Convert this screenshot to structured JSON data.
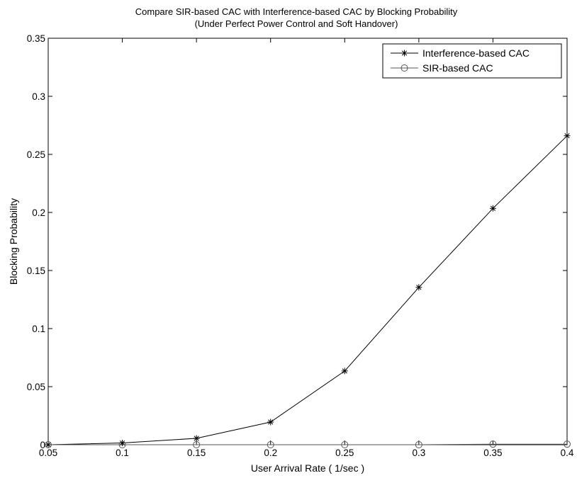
{
  "chart_data": {
    "type": "line",
    "title": "Compare SIR-based CAC with Interference-based CAC by Blocking Probability",
    "subtitle": "(Under Perfect Power Control and Soft Handover)",
    "xlabel": "User Arrival Rate ( 1/sec )",
    "ylabel": "Blocking Probability",
    "xlim": [
      0.05,
      0.4
    ],
    "ylim": [
      0,
      0.35
    ],
    "xticks": [
      "0.05",
      "0.1",
      "0.15",
      "0.2",
      "0.25",
      "0.3",
      "0.35",
      "0.4"
    ],
    "yticks": [
      "0",
      "0.05",
      "0.1",
      "0.15",
      "0.2",
      "0.25",
      "0.3",
      "0.35"
    ],
    "grid": false,
    "legend_position": "top-right",
    "x": [
      0.05,
      0.1,
      0.15,
      0.2,
      0.25,
      0.3,
      0.35,
      0.4
    ],
    "series": [
      {
        "name": "Interference-based CAC",
        "marker": "asterisk",
        "values": [
          0.0,
          0.0015,
          0.0055,
          0.0195,
          0.0635,
          0.1355,
          0.2035,
          0.266
        ]
      },
      {
        "name": "SIR-based CAC",
        "marker": "circle",
        "values": [
          0.0,
          0.0,
          0.0,
          0.0,
          0.0,
          0.0,
          0.0005,
          0.0005
        ]
      }
    ],
    "colors": {
      "line": "#000000",
      "background": "#ffffff"
    }
  }
}
